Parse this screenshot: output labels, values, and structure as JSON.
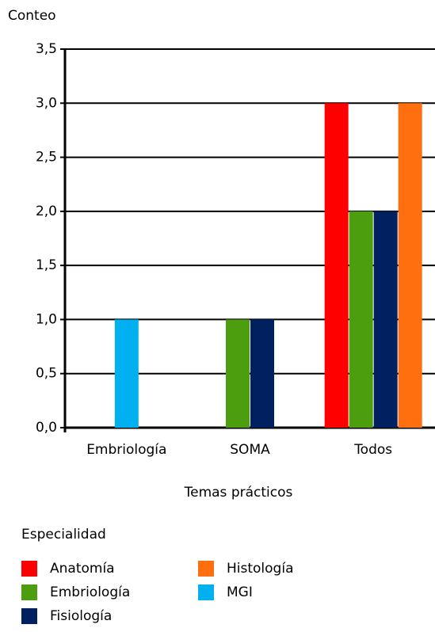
{
  "chart_data": {
    "type": "bar",
    "y_axis_label": "Conteo",
    "x_axis_label": "Temas prácticos",
    "legend_title": "Especialidad",
    "categories": [
      "Embriología",
      "SOMA",
      "Todos"
    ],
    "series": [
      {
        "name": "Anatomía",
        "color": "#ff0000",
        "values": [
          null,
          null,
          3
        ]
      },
      {
        "name": "Embriología",
        "color": "#4c9e0e",
        "values": [
          null,
          1,
          2
        ]
      },
      {
        "name": "Fisiología",
        "color": "#002060",
        "values": [
          null,
          1,
          2
        ]
      },
      {
        "name": "Histología",
        "color": "#ff6f0f",
        "values": [
          null,
          null,
          3
        ]
      },
      {
        "name": "MGI",
        "color": "#00b0f0",
        "values": [
          1,
          null,
          null
        ]
      }
    ],
    "ylim": [
      0,
      3.5
    ],
    "yticks": [
      {
        "value": 0,
        "label": "0,0"
      },
      {
        "value": 0.5,
        "label": "0,5"
      },
      {
        "value": 1,
        "label": "1,0"
      },
      {
        "value": 1.5,
        "label": "1,5"
      },
      {
        "value": 2,
        "label": "2,0"
      },
      {
        "value": 2.5,
        "label": "2,5"
      },
      {
        "value": 3,
        "label": "3,0"
      },
      {
        "value": 3.5,
        "label": "3,5"
      }
    ],
    "grid": true
  }
}
